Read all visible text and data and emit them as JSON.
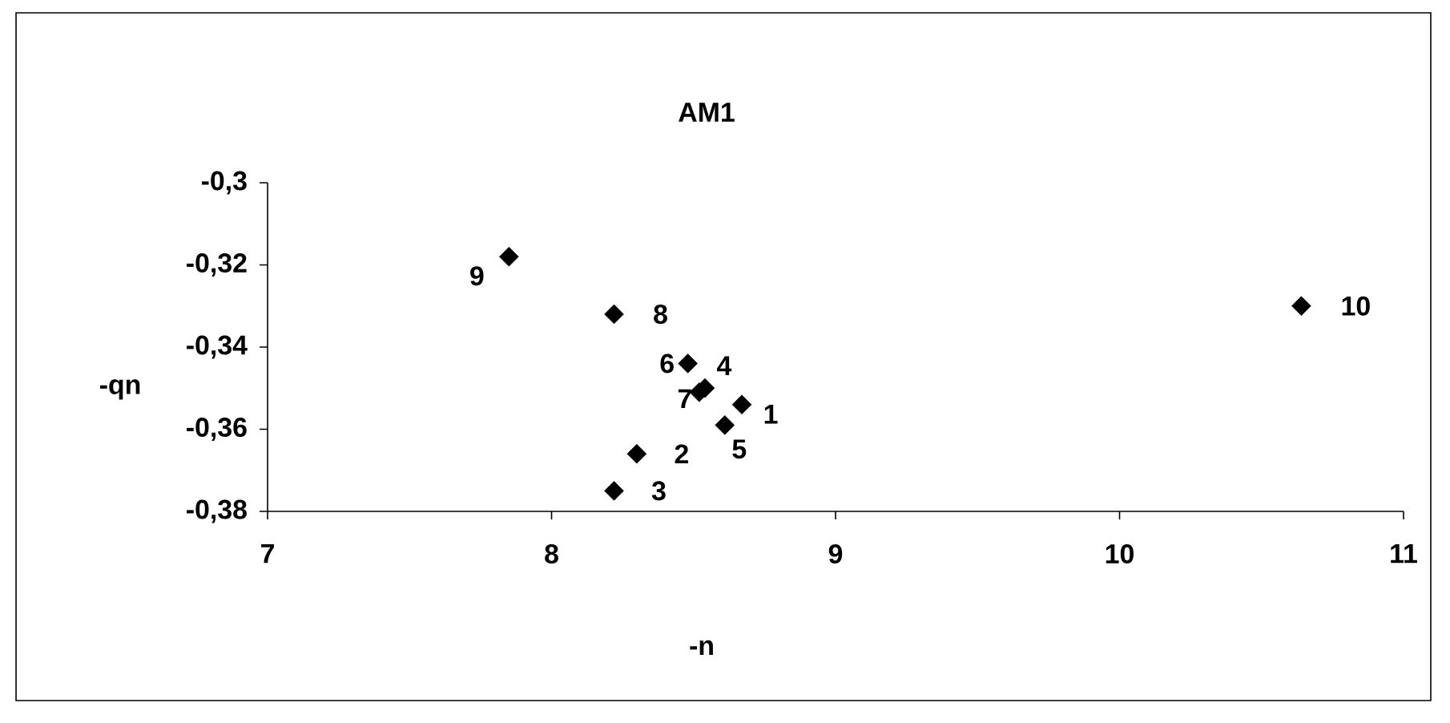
{
  "chart_data": {
    "type": "scatter",
    "title": "AM1",
    "xlabel": "-n",
    "ylabel": "-qn",
    "series": [
      {
        "color": "#000000",
        "x": [
          8.67,
          8.3,
          8.22,
          8.54,
          8.61,
          8.48,
          8.52,
          8.22,
          7.85,
          10.64
        ],
        "values": [
          -0.354,
          -0.366,
          -0.375,
          -0.35,
          -0.359,
          -0.344,
          -0.351,
          -0.332,
          -0.318,
          -0.33
        ]
      }
    ],
    "marker": "diamond",
    "xlim": [
      7,
      11
    ],
    "xticks": [
      7,
      8,
      9,
      10,
      11
    ],
    "ylim": [
      -0.38,
      -0.3
    ],
    "yticks": [
      {
        "value": -0.38,
        "label": "-0,38"
      },
      {
        "value": -0.36,
        "label": "-0,36"
      },
      {
        "value": -0.34,
        "label": "-0,34"
      },
      {
        "value": -0.32,
        "label": "-0,32"
      },
      {
        "value": -0.3,
        "label": "-0,3"
      }
    ],
    "annotations": [
      {
        "text": "1",
        "x": 8.67,
        "y": -0.354
      },
      {
        "text": "2",
        "x": 8.3,
        "y": -0.366
      },
      {
        "text": "3",
        "x": 8.22,
        "y": -0.375
      },
      {
        "text": "4",
        "x": 8.54,
        "y": -0.35
      },
      {
        "text": "5",
        "x": 8.61,
        "y": -0.359
      },
      {
        "text": "6",
        "x": 8.48,
        "y": -0.344
      },
      {
        "text": "7",
        "x": 8.52,
        "y": -0.351
      },
      {
        "text": "8",
        "x": 8.22,
        "y": -0.332
      },
      {
        "text": "9",
        "x": 7.85,
        "y": -0.318
      },
      {
        "text": "10",
        "x": 10.64,
        "y": -0.33
      }
    ]
  }
}
